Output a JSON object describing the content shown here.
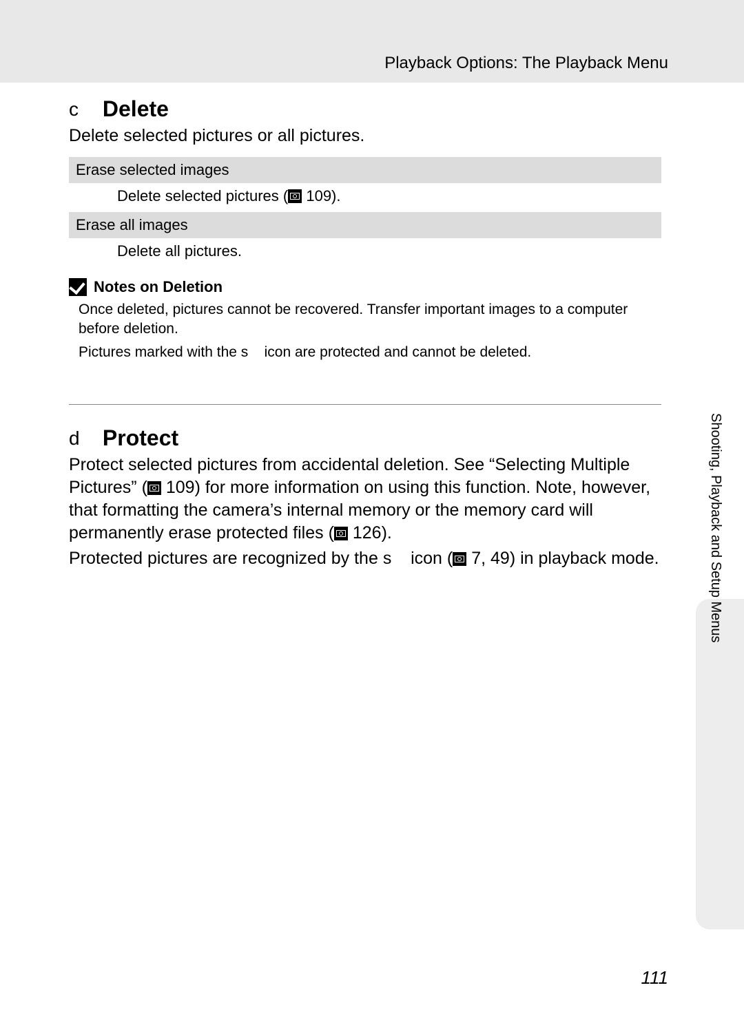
{
  "header": "Playback Options: The Playback Menu",
  "sidetab": "Shooting, Playback and Setup Menus",
  "page_number": "111",
  "delete": {
    "prefix": "c",
    "title": "Delete",
    "intro": "Delete selected pictures or all pictures.",
    "rows": [
      {
        "head": "Erase selected images",
        "body_pre": "Delete selected pictures (",
        "body_post": " 109)."
      },
      {
        "head": "Erase all images",
        "body_pre": "Delete all pictures.",
        "body_post": ""
      }
    ]
  },
  "notes": {
    "title": "Notes on Deletion",
    "line1": "Once deleted, pictures cannot be recovered. Transfer important images to a computer before deletion.",
    "line2_pre": "Pictures marked with the ",
    "line2_glyph": "s",
    "line2_post": " icon are protected and cannot be deleted."
  },
  "protect": {
    "prefix": "d",
    "title": "Protect",
    "p1_pre": "Protect selected pictures from accidental deletion. See “Selecting Multiple Pictures” (",
    "p1_ref": " 109",
    "p1_mid": ") for more information on using this function. Note, however, that formatting the camera’s internal memory or the memory card will permanently erase protected files (",
    "p1_ref2": " 126",
    "p1_post": ").",
    "p2_pre": "Protected pictures are recognized by the ",
    "p2_glyph": "s",
    "p2_mid": " icon (",
    "p2_ref": " 7, 49",
    "p2_post": ") in playback mode."
  },
  "colors": {
    "page_bg": "#ffffff",
    "topband": "#e8e8e8",
    "row_head_bg": "#dcdcdc",
    "sidetab_bg": "#ededed",
    "divider": "#888888"
  }
}
